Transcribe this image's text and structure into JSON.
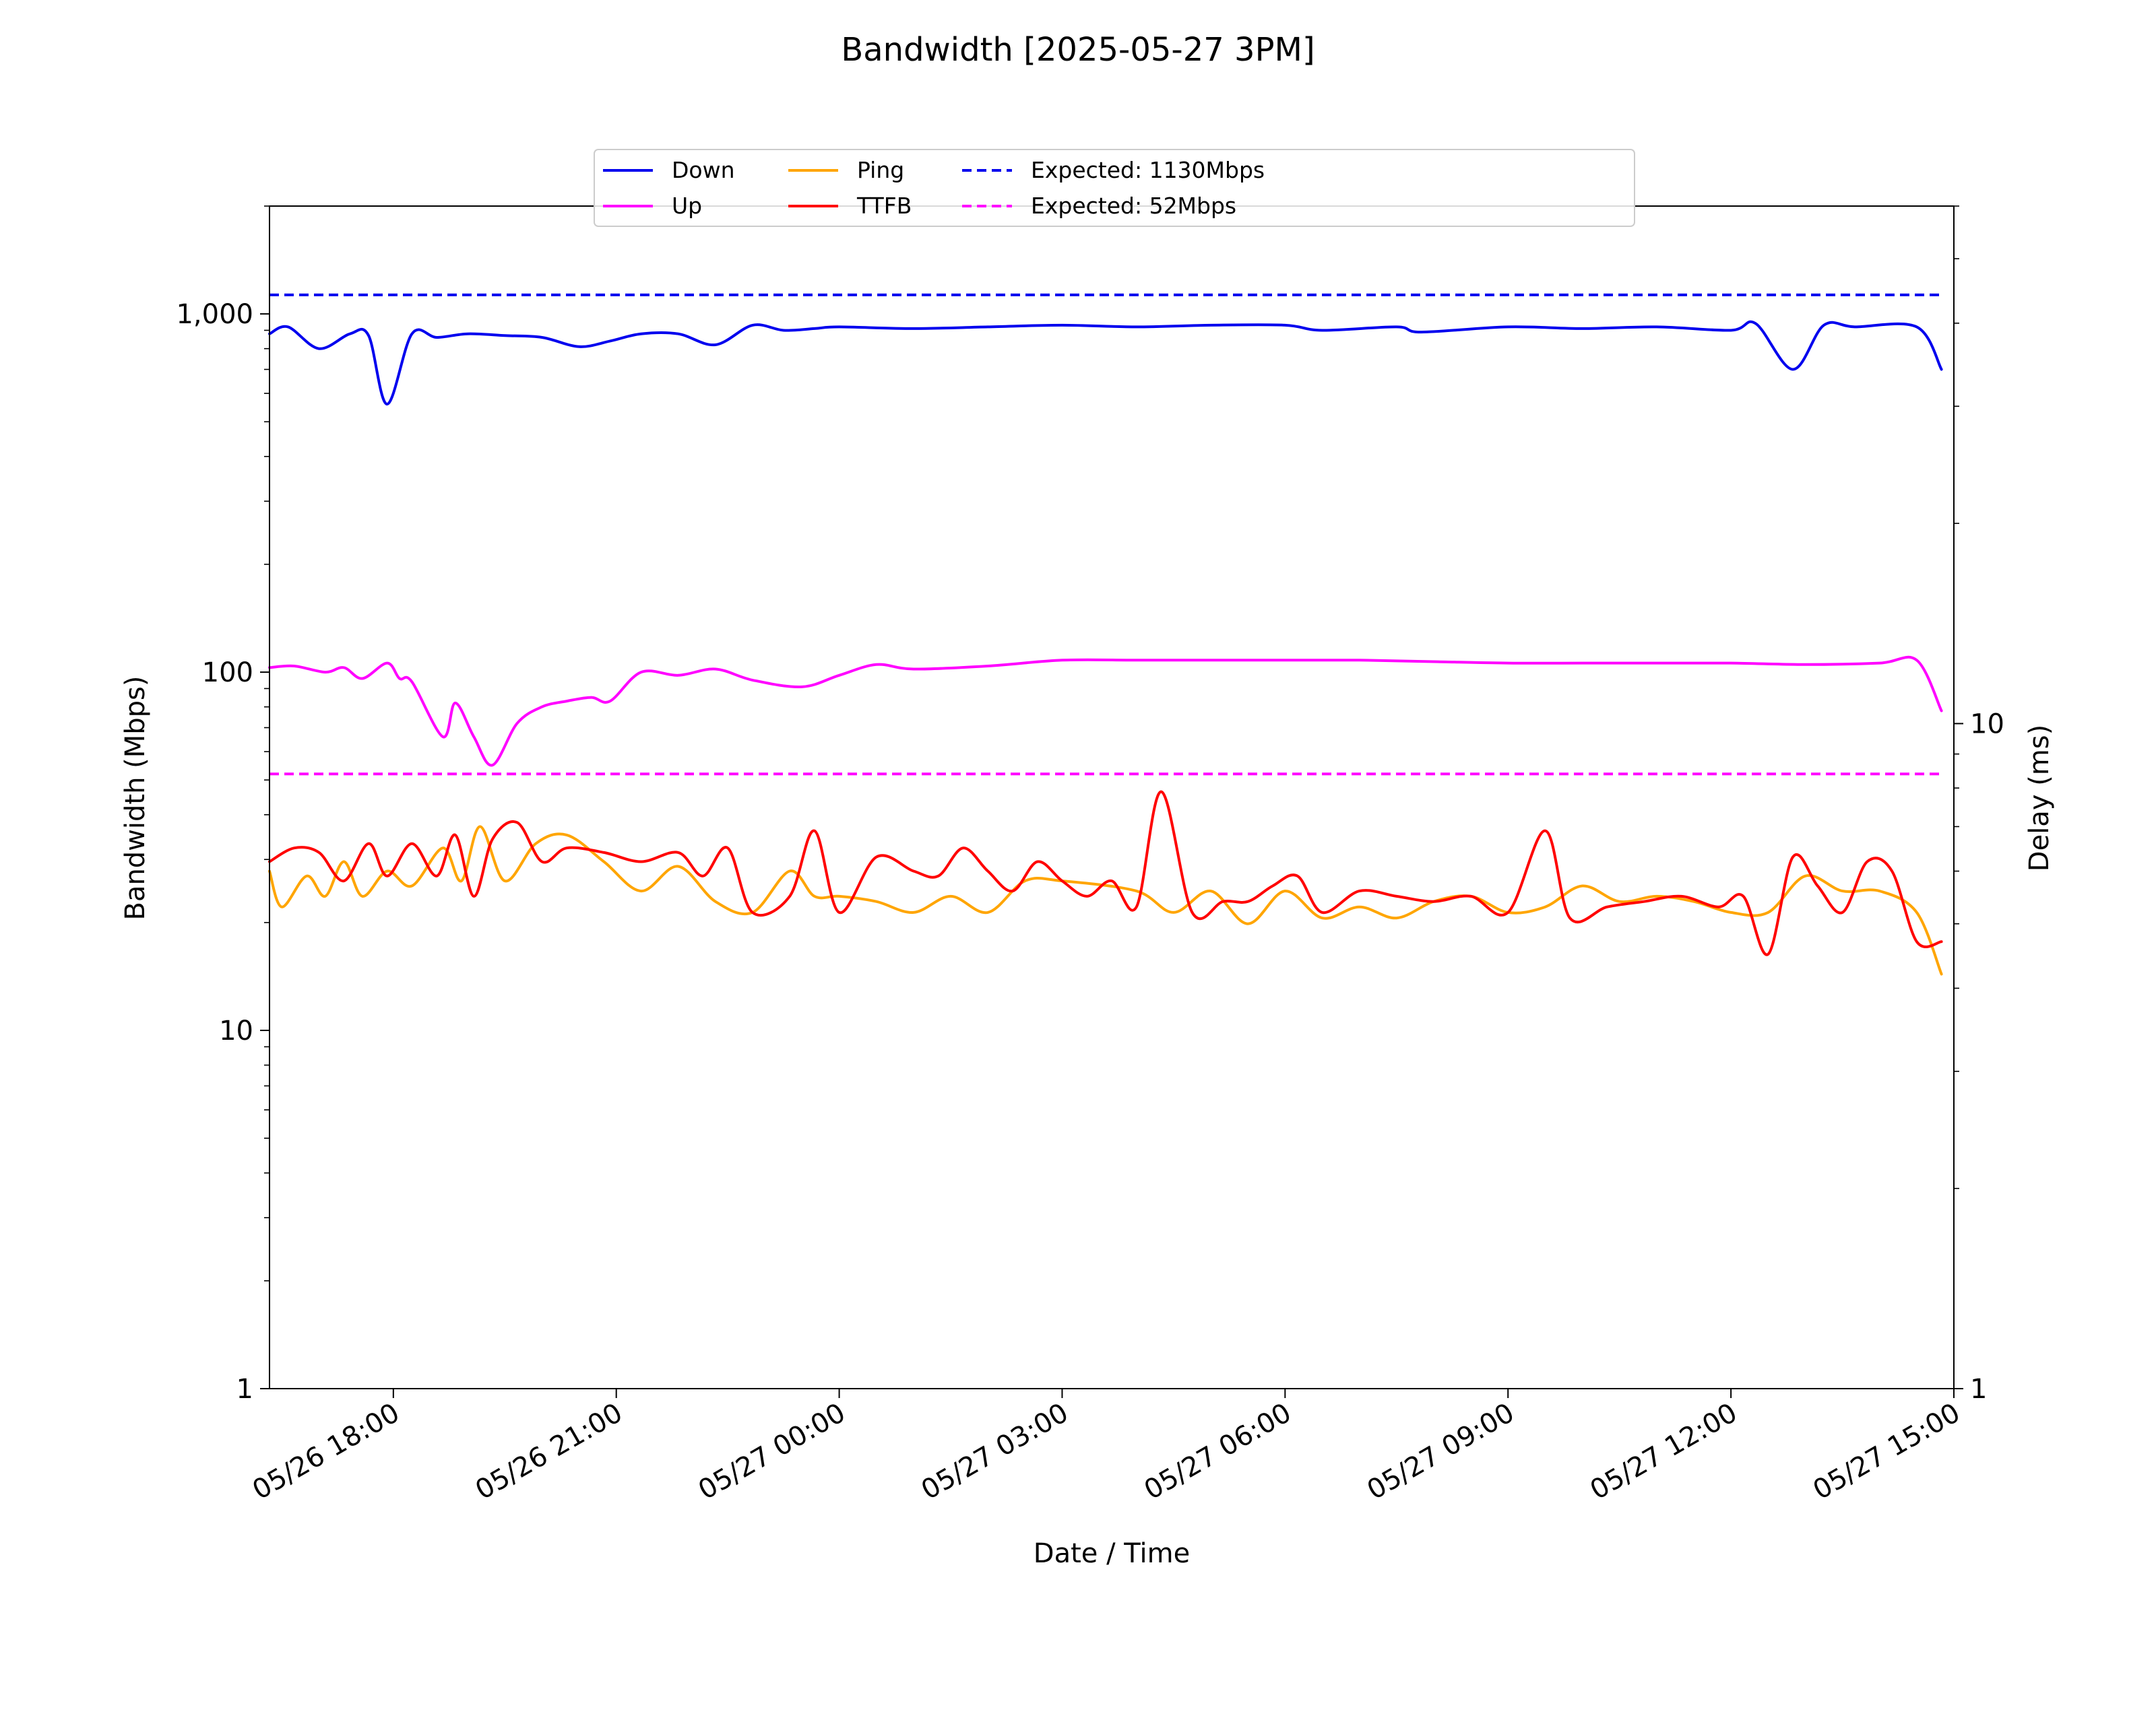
{
  "chart_data": {
    "type": "line",
    "title": "Bandwidth [2025-05-27 3PM]",
    "xlabel": "Date / Time",
    "ylabel": "Bandwidth (Mbps)",
    "y2label": "Delay (ms)",
    "x_range": [
      "2025-05-26 16:20",
      "2025-05-27 15:00"
    ],
    "x_ticks": [
      {
        "value": "2025-05-26 18:00",
        "label": "05/26 18:00"
      },
      {
        "value": "2025-05-26 21:00",
        "label": "05/26 21:00"
      },
      {
        "value": "2025-05-27 00:00",
        "label": "05/27 00:00"
      },
      {
        "value": "2025-05-27 03:00",
        "label": "05/27 03:00"
      },
      {
        "value": "2025-05-27 06:00",
        "label": "05/27 06:00"
      },
      {
        "value": "2025-05-27 09:00",
        "label": "05/27 09:00"
      },
      {
        "value": "2025-05-27 12:00",
        "label": "05/27 12:00"
      },
      {
        "value": "2025-05-27 15:00",
        "label": "05/27 15:00"
      }
    ],
    "y_scale": "log",
    "ylim": [
      1,
      2000
    ],
    "y_ticks": [
      {
        "value": 1,
        "label": "1"
      },
      {
        "value": 10,
        "label": "10"
      },
      {
        "value": 100,
        "label": "100"
      },
      {
        "value": 1000,
        "label": "1,000"
      }
    ],
    "y2_scale": "log",
    "y2lim": [
      1,
      60
    ],
    "y2_ticks": [
      {
        "value": 1,
        "label": "1"
      },
      {
        "value": 10,
        "label": "10"
      }
    ],
    "legend_position": "top-center",
    "grid": false,
    "series": [
      {
        "name": "Down",
        "axis": "left",
        "color": "#0000ee",
        "style": "solid",
        "x": [
          "2025-05-26 16:20",
          "2025-05-26 16:35",
          "2025-05-26 17:00",
          "2025-05-26 17:25",
          "2025-05-26 17:40",
          "2025-05-26 17:55",
          "2025-05-26 18:15",
          "2025-05-26 18:35",
          "2025-05-26 19:00",
          "2025-05-26 19:30",
          "2025-05-26 20:00",
          "2025-05-26 20:30",
          "2025-05-26 20:55",
          "2025-05-26 21:20",
          "2025-05-26 21:50",
          "2025-05-26 22:20",
          "2025-05-26 22:50",
          "2025-05-26 23:15",
          "2025-05-26 23:40",
          "2025-05-27 00:00",
          "2025-05-27 01:00",
          "2025-05-27 02:00",
          "2025-05-27 03:00",
          "2025-05-27 04:00",
          "2025-05-27 05:00",
          "2025-05-27 06:00",
          "2025-05-27 06:30",
          "2025-05-27 07:30",
          "2025-05-27 07:50",
          "2025-05-27 09:00",
          "2025-05-27 10:00",
          "2025-05-27 11:00",
          "2025-05-27 12:00",
          "2025-05-27 12:20",
          "2025-05-27 12:50",
          "2025-05-27 13:15",
          "2025-05-27 13:40",
          "2025-05-27 14:30",
          "2025-05-27 14:50"
        ],
        "y": [
          880,
          920,
          800,
          880,
          870,
          560,
          880,
          860,
          880,
          870,
          860,
          810,
          840,
          880,
          880,
          820,
          930,
          900,
          910,
          920,
          910,
          920,
          930,
          920,
          930,
          930,
          900,
          920,
          890,
          920,
          910,
          920,
          900,
          940,
          700,
          930,
          920,
          920,
          700
        ]
      },
      {
        "name": "Up",
        "axis": "left",
        "color": "#ff00ff",
        "style": "solid",
        "x": [
          "2025-05-26 16:20",
          "2025-05-26 16:40",
          "2025-05-26 17:05",
          "2025-05-26 17:20",
          "2025-05-26 17:35",
          "2025-05-26 17:55",
          "2025-05-26 18:05",
          "2025-05-26 18:15",
          "2025-05-26 18:40",
          "2025-05-26 18:50",
          "2025-05-26 19:05",
          "2025-05-26 19:20",
          "2025-05-26 19:40",
          "2025-05-26 20:00",
          "2025-05-26 20:20",
          "2025-05-26 20:40",
          "2025-05-26 20:55",
          "2025-05-26 21:20",
          "2025-05-26 21:50",
          "2025-05-26 22:20",
          "2025-05-26 22:50",
          "2025-05-26 23:30",
          "2025-05-27 00:00",
          "2025-05-27 00:30",
          "2025-05-27 01:00",
          "2025-05-27 02:00",
          "2025-05-27 03:00",
          "2025-05-27 04:00",
          "2025-05-27 05:00",
          "2025-05-27 06:00",
          "2025-05-27 07:00",
          "2025-05-27 08:00",
          "2025-05-27 09:00",
          "2025-05-27 10:00",
          "2025-05-27 11:00",
          "2025-05-27 12:00",
          "2025-05-27 13:00",
          "2025-05-27 14:00",
          "2025-05-27 14:30",
          "2025-05-27 14:50"
        ],
        "y": [
          103,
          104,
          100,
          103,
          96,
          106,
          96,
          94,
          66,
          82,
          66,
          55,
          72,
          80,
          83,
          85,
          83,
          100,
          98,
          102,
          95,
          91,
          98,
          105,
          102,
          104,
          108,
          108,
          108,
          108,
          108,
          107,
          106,
          106,
          106,
          106,
          105,
          106,
          108,
          78
        ]
      },
      {
        "name": "Expected: 1130Mbps",
        "axis": "left",
        "color": "#0000ee",
        "style": "dashed",
        "x": [
          "2025-05-26 16:20",
          "2025-05-27 14:50"
        ],
        "y": [
          1130,
          1130
        ]
      },
      {
        "name": "Expected: 52Mbps",
        "axis": "left",
        "color": "#ff00ff",
        "style": "dashed",
        "x": [
          "2025-05-26 16:20",
          "2025-05-27 14:50"
        ],
        "y": [
          52,
          52
        ]
      },
      {
        "name": "Ping",
        "axis": "right",
        "color": "#ffa500",
        "style": "solid",
        "x": [
          "2025-05-26 16:20",
          "2025-05-26 16:30",
          "2025-05-26 16:50",
          "2025-05-26 17:05",
          "2025-05-26 17:20",
          "2025-05-26 17:35",
          "2025-05-26 17:55",
          "2025-05-26 18:15",
          "2025-05-26 18:40",
          "2025-05-26 18:55",
          "2025-05-26 19:10",
          "2025-05-26 19:30",
          "2025-05-26 19:55",
          "2025-05-26 20:20",
          "2025-05-26 20:50",
          "2025-05-26 21:20",
          "2025-05-26 21:50",
          "2025-05-26 22:20",
          "2025-05-26 22:50",
          "2025-05-26 23:20",
          "2025-05-26 23:40",
          "2025-05-27 00:00",
          "2025-05-27 00:30",
          "2025-05-27 01:00",
          "2025-05-27 01:30",
          "2025-05-27 02:00",
          "2025-05-27 02:30",
          "2025-05-27 03:00",
          "2025-05-27 04:00",
          "2025-05-27 04:30",
          "2025-05-27 05:00",
          "2025-05-27 05:30",
          "2025-05-27 06:00",
          "2025-05-27 06:30",
          "2025-05-27 07:00",
          "2025-05-27 07:30",
          "2025-05-27 08:00",
          "2025-05-27 08:30",
          "2025-05-27 09:00",
          "2025-05-27 09:30",
          "2025-05-27 10:00",
          "2025-05-27 10:30",
          "2025-05-27 11:00",
          "2025-05-27 11:30",
          "2025-05-27 12:00",
          "2025-05-27 12:30",
          "2025-05-27 13:00",
          "2025-05-27 13:30",
          "2025-05-27 14:00",
          "2025-05-27 14:30",
          "2025-05-27 14:50"
        ],
        "y": [
          6.0,
          5.3,
          5.9,
          5.5,
          6.2,
          5.5,
          6.0,
          5.7,
          6.5,
          5.8,
          7.0,
          5.8,
          6.6,
          6.8,
          6.2,
          5.6,
          6.1,
          5.4,
          5.2,
          6.0,
          5.5,
          5.5,
          5.4,
          5.2,
          5.5,
          5.2,
          5.8,
          5.8,
          5.6,
          5.2,
          5.6,
          5.0,
          5.6,
          5.1,
          5.3,
          5.1,
          5.4,
          5.5,
          5.2,
          5.3,
          5.7,
          5.4,
          5.5,
          5.4,
          5.2,
          5.2,
          5.9,
          5.6,
          5.6,
          5.2,
          4.2
        ]
      },
      {
        "name": "TTFB",
        "axis": "right",
        "color": "#ff0000",
        "style": "solid",
        "x": [
          "2025-05-26 16:20",
          "2025-05-26 16:40",
          "2025-05-26 17:00",
          "2025-05-26 17:20",
          "2025-05-26 17:40",
          "2025-05-26 17:55",
          "2025-05-26 18:15",
          "2025-05-26 18:35",
          "2025-05-26 18:50",
          "2025-05-26 19:05",
          "2025-05-26 19:20",
          "2025-05-26 19:40",
          "2025-05-26 20:00",
          "2025-05-26 20:20",
          "2025-05-26 20:50",
          "2025-05-26 21:20",
          "2025-05-26 21:50",
          "2025-05-26 22:10",
          "2025-05-26 22:30",
          "2025-05-26 22:50",
          "2025-05-26 23:20",
          "2025-05-26 23:40",
          "2025-05-27 00:00",
          "2025-05-27 00:30",
          "2025-05-27 01:00",
          "2025-05-27 01:20",
          "2025-05-27 01:40",
          "2025-05-27 02:00",
          "2025-05-27 02:20",
          "2025-05-27 02:40",
          "2025-05-27 03:00",
          "2025-05-27 03:20",
          "2025-05-27 03:40",
          "2025-05-27 04:00",
          "2025-05-27 04:20",
          "2025-05-27 04:45",
          "2025-05-27 05:10",
          "2025-05-27 05:30",
          "2025-05-27 05:50",
          "2025-05-27 06:10",
          "2025-05-27 06:30",
          "2025-05-27 07:00",
          "2025-05-27 07:30",
          "2025-05-27 08:00",
          "2025-05-27 08:30",
          "2025-05-27 09:00",
          "2025-05-27 09:30",
          "2025-05-27 09:50",
          "2025-05-27 10:20",
          "2025-05-27 10:50",
          "2025-05-27 11:20",
          "2025-05-27 11:50",
          "2025-05-27 12:10",
          "2025-05-27 12:30",
          "2025-05-27 12:50",
          "2025-05-27 13:10",
          "2025-05-27 13:30",
          "2025-05-27 13:50",
          "2025-05-27 14:10",
          "2025-05-27 14:30",
          "2025-05-27 14:50"
        ],
        "y": [
          6.2,
          6.5,
          6.4,
          5.8,
          6.6,
          5.9,
          6.6,
          5.9,
          6.8,
          5.5,
          6.7,
          7.1,
          6.2,
          6.5,
          6.4,
          6.2,
          6.4,
          5.9,
          6.5,
          5.2,
          5.5,
          6.9,
          5.2,
          6.3,
          6.0,
          5.9,
          6.5,
          6.0,
          5.6,
          6.2,
          5.8,
          5.5,
          5.8,
          5.3,
          7.9,
          5.2,
          5.4,
          5.4,
          5.7,
          5.9,
          5.2,
          5.6,
          5.5,
          5.4,
          5.5,
          5.2,
          6.9,
          5.1,
          5.3,
          5.4,
          5.5,
          5.3,
          5.5,
          4.5,
          6.3,
          5.7,
          5.2,
          6.2,
          6.0,
          4.7,
          4.7
        ]
      }
    ],
    "legend": [
      {
        "label": "Down",
        "color": "#0000ee",
        "style": "solid"
      },
      {
        "label": "Up",
        "color": "#ff00ff",
        "style": "solid"
      },
      {
        "label": "Ping",
        "color": "#ffa500",
        "style": "solid"
      },
      {
        "label": "TTFB",
        "color": "#ff0000",
        "style": "solid"
      },
      {
        "label": "Expected: 1130Mbps",
        "color": "#0000ee",
        "style": "dashed"
      },
      {
        "label": "Expected: 52Mbps",
        "color": "#ff00ff",
        "style": "dashed"
      }
    ]
  }
}
